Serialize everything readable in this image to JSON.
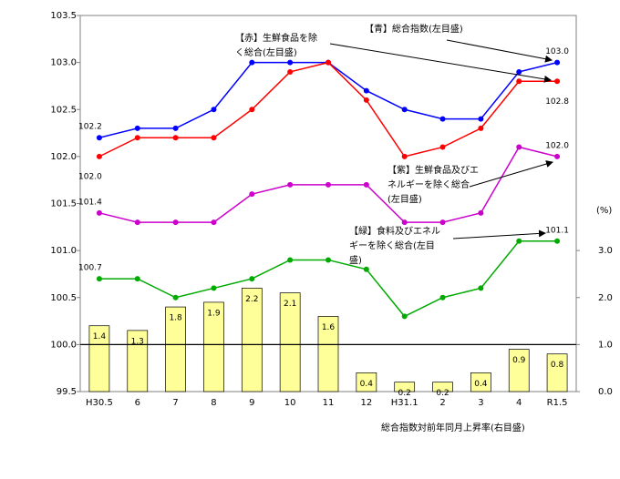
{
  "chart_data": {
    "type": "line_bar",
    "categories": [
      "H30.5",
      "6",
      "7",
      "8",
      "9",
      "10",
      "11",
      "12",
      "H31.1",
      "2",
      "3",
      "4",
      "R1.5"
    ],
    "ylim": [
      99.5,
      103.5
    ],
    "yticks": [
      99.5,
      {
        "value": 100.0,
        "label": "100.0"
      },
      100.5,
      {
        "value": 101.0,
        "label": "101.0"
      },
      101.5,
      {
        "value": 102.0,
        "label": "102.0"
      },
      102.5,
      {
        "value": 103.0,
        "label": "103.0"
      },
      103.5
    ],
    "y2lim": [
      0,
      8
    ],
    "y2ticks": [
      {
        "value": 0,
        "label": "0.0"
      },
      {
        "value": 1,
        "label": "1.0"
      },
      {
        "value": 2,
        "label": "2.0"
      },
      {
        "value": 3,
        "label": "3.0"
      }
    ],
    "y2_unit": "(%)",
    "reference_line": 100,
    "series": [
      {
        "name": "総合指数対前年同月上昇率(右目盛)",
        "type": "bar",
        "axis": "y2",
        "color": "#ffff99",
        "values": [
          1.4,
          1.3,
          1.8,
          1.9,
          2.2,
          2.1,
          1.6,
          0.4,
          0.2,
          0.2,
          0.4,
          0.9,
          0.8
        ]
      },
      {
        "name": [
          "【青】総合指数(左目盛)"
        ],
        "type": "line",
        "color": "#0000ff",
        "values": [
          102.2,
          102.3,
          102.3,
          102.5,
          103.0,
          103.0,
          103.0,
          102.7,
          102.5,
          102.4,
          102.4,
          102.9,
          103.0
        ],
        "value_labels": [
          "102.2",
          null,
          null,
          null,
          null,
          null,
          null,
          null,
          null,
          null,
          null,
          null,
          "103.0"
        ]
      },
      {
        "name": [
          "【赤】生鮮食品を除",
          "く総合(左目盛)"
        ],
        "type": "line",
        "color": "#ff0000",
        "values": [
          102.0,
          102.2,
          102.2,
          102.2,
          102.5,
          102.9,
          103.0,
          102.6,
          102.0,
          102.1,
          102.3,
          102.8,
          102.8
        ],
        "value_labels": [
          "102.0",
          null,
          null,
          null,
          null,
          null,
          null,
          null,
          null,
          null,
          null,
          null,
          "102.8"
        ]
      },
      {
        "name": [
          "【紫】生鮮食品及びエ",
          "ネルギーを除く総合",
          "(左目盛)"
        ],
        "type": "line",
        "color": "#cc00cc",
        "values": [
          101.4,
          101.3,
          101.3,
          101.3,
          101.6,
          101.7,
          101.7,
          101.7,
          101.3,
          101.3,
          101.4,
          102.1,
          102.0
        ],
        "value_labels": [
          "101.4",
          null,
          null,
          null,
          null,
          null,
          null,
          null,
          null,
          null,
          null,
          null,
          "102.0"
        ]
      },
      {
        "name": [
          "【緑】食料及びエネル",
          "ギーを除く総合(左目",
          "盛)"
        ],
        "type": "line",
        "color": "#00aa00",
        "values": [
          100.7,
          100.7,
          100.5,
          100.6,
          100.7,
          100.9,
          100.9,
          100.8,
          100.3,
          100.5,
          100.6,
          101.1,
          101.1
        ],
        "value_labels": [
          "100.7",
          null,
          null,
          null,
          null,
          null,
          null,
          null,
          null,
          null,
          null,
          null,
          "101.1"
        ]
      }
    ]
  }
}
